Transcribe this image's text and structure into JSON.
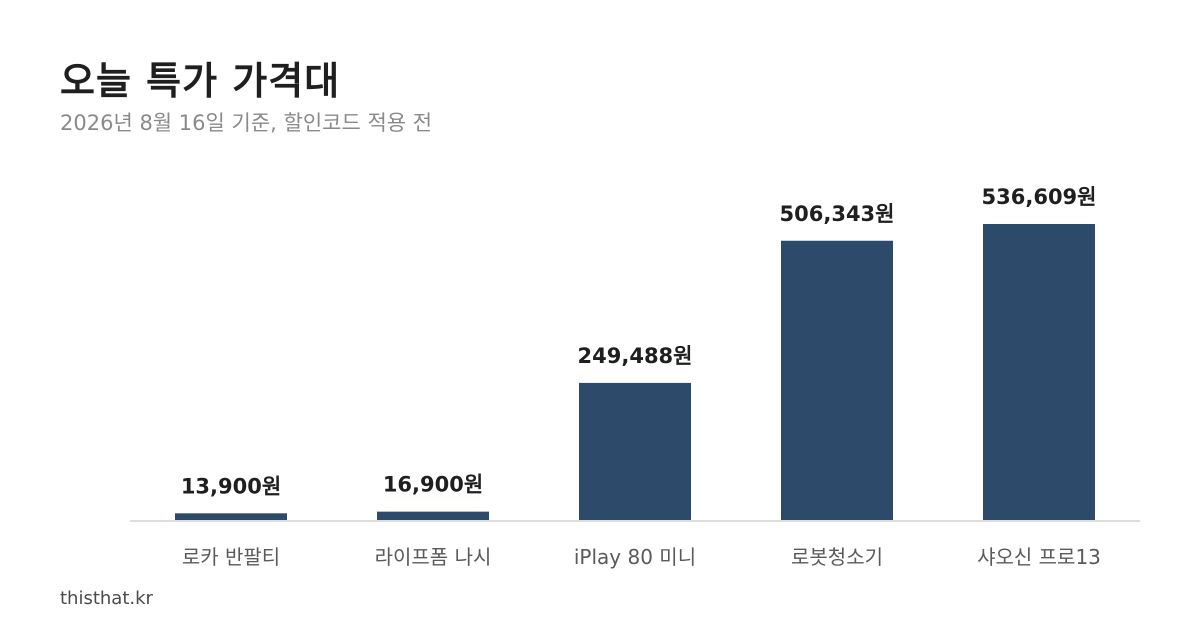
{
  "header": {
    "title": "오늘 특가 가격대",
    "subtitle": "2026년 8월 16일 기준, 할인코드 적용 전"
  },
  "footer": {
    "brand": "thisthat.kr"
  },
  "colors": {
    "bar": "#2d4a6b",
    "baseline": "#dddddd"
  },
  "chart_data": {
    "type": "bar",
    "categories": [
      "로카 반팔티",
      "라이프폼 나시",
      "iPlay 80 미니",
      "로봇청소기",
      "샤오신 프로13"
    ],
    "values": [
      13900,
      16900,
      249488,
      506343,
      536609
    ],
    "value_labels": [
      "13,900원",
      "16,900원",
      "249,488원",
      "506,343원",
      "536,609원"
    ],
    "ylim": [
      0,
      550000
    ],
    "grid": false,
    "legend": "none"
  }
}
